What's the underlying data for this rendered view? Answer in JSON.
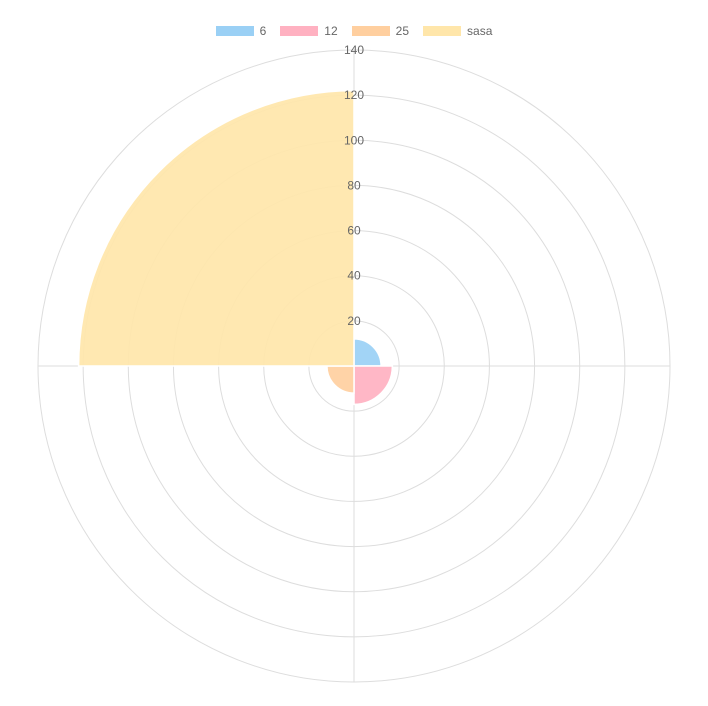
{
  "chart_data": {
    "type": "polarArea",
    "categories": [
      "6",
      "12",
      "25",
      "sasa"
    ],
    "values": [
      12,
      17,
      12,
      122
    ],
    "colors": [
      "#9ad0f5",
      "#ffb1c1",
      "#ffcf9f",
      "#ffe6aa"
    ],
    "r_range": [
      0,
      140
    ],
    "r_ticks": [
      "20",
      "40",
      "60",
      "80",
      "100",
      "120",
      "140"
    ],
    "grid": true,
    "legend_position": "top"
  }
}
